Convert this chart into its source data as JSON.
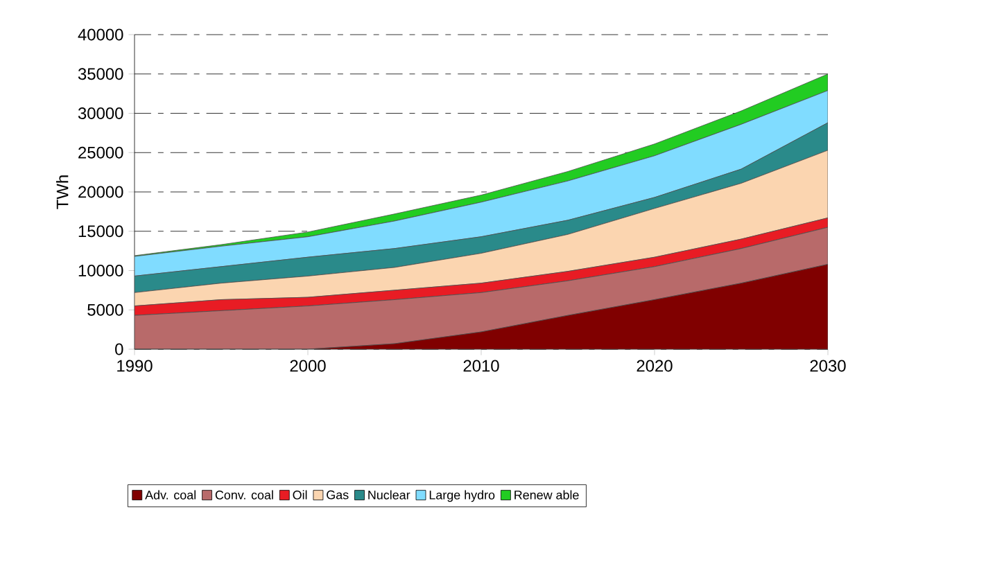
{
  "chart_data": {
    "type": "area",
    "stacked": true,
    "ylabel": "TWh",
    "x": [
      1990,
      1995,
      2000,
      2005,
      2010,
      2015,
      2020,
      2025,
      2030
    ],
    "xlim": [
      1990,
      2030
    ],
    "xticks": [
      1990,
      2000,
      2010,
      2020,
      2030
    ],
    "ylim": [
      0,
      40000
    ],
    "yticks": [
      0,
      5000,
      10000,
      15000,
      20000,
      25000,
      30000,
      35000,
      40000
    ],
    "grid": "y",
    "legend": "bottom",
    "series": [
      {
        "name": "Adv. coal",
        "color": "#800000",
        "values": [
          0,
          0,
          0,
          700,
          2200,
          4300,
          6300,
          8400,
          10800
        ]
      },
      {
        "name": "Conv. coal",
        "color": "#b86a6a",
        "values": [
          4300,
          4900,
          5500,
          5600,
          5000,
          4400,
          4200,
          4400,
          4700
        ]
      },
      {
        "name": "Oil",
        "color": "#e81c24",
        "values": [
          1200,
          1400,
          1100,
          1200,
          1200,
          1200,
          1200,
          1200,
          1200
        ]
      },
      {
        "name": "Gas",
        "color": "#fbd5b0",
        "values": [
          1700,
          2100,
          2700,
          2900,
          3800,
          4700,
          6200,
          7100,
          8600
        ]
      },
      {
        "name": "Nuclear",
        "color": "#2a8a8a",
        "values": [
          2100,
          2100,
          2400,
          2400,
          2100,
          1800,
          1400,
          1800,
          3500
        ]
      },
      {
        "name": "Large hydro",
        "color": "#80dcff",
        "values": [
          2500,
          2600,
          2600,
          3500,
          4400,
          5000,
          5300,
          5700,
          4100
        ]
      },
      {
        "name": "Renew able",
        "color": "#22cc22",
        "values": [
          100,
          200,
          600,
          900,
          900,
          1200,
          1500,
          1700,
          2100
        ]
      }
    ]
  }
}
